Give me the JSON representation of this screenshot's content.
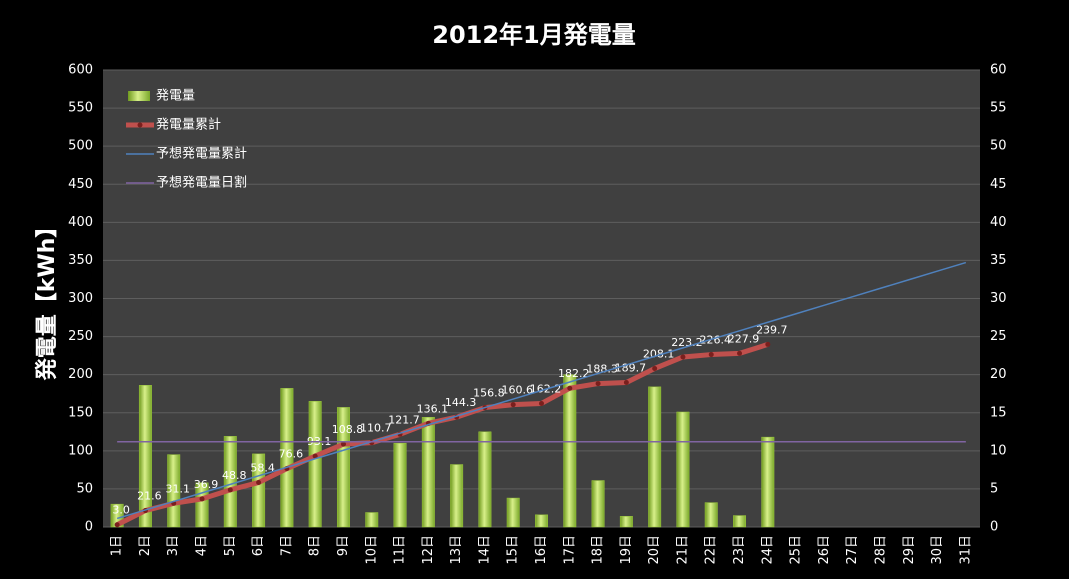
{
  "chart_data": {
    "type": "bar",
    "title": "2012年1月発電量",
    "y_label": "発電量【kWh】",
    "categories": [
      "1日",
      "2日",
      "3日",
      "4日",
      "5日",
      "6日",
      "7日",
      "8日",
      "9日",
      "10日",
      "11日",
      "12日",
      "13日",
      "14日",
      "15日",
      "16日",
      "17日",
      "18日",
      "19日",
      "20日",
      "21日",
      "22日",
      "23日",
      "24日",
      "25日",
      "26日",
      "27日",
      "28日",
      "29日",
      "30日",
      "31日"
    ],
    "ylim": [
      0,
      600
    ],
    "yticks": [
      0,
      50,
      100,
      150,
      200,
      250,
      300,
      350,
      400,
      450,
      500,
      550,
      600
    ],
    "y2lim": [
      0,
      60
    ],
    "y2ticks": [
      0,
      5,
      10,
      15,
      20,
      25,
      30,
      35,
      40,
      45,
      50,
      55,
      60
    ],
    "grid": true,
    "legend": "upper left",
    "series": [
      {
        "name": "発電量",
        "type": "bar",
        "axis": "y2",
        "color": "#9bc83c",
        "values": [
          3.0,
          18.6,
          9.5,
          5.8,
          11.9,
          9.6,
          18.2,
          16.5,
          15.7,
          1.9,
          11.0,
          14.4,
          8.2,
          12.5,
          3.8,
          1.6,
          20.0,
          6.1,
          1.4,
          18.4,
          15.1,
          3.2,
          1.5,
          11.8,
          null,
          null,
          null,
          null,
          null,
          null,
          null
        ]
      },
      {
        "name": "発電量累計",
        "type": "line",
        "color": "#c0504d",
        "markers": true,
        "values": [
          3.0,
          21.6,
          31.1,
          36.9,
          48.8,
          58.4,
          76.6,
          93.1,
          108.8,
          110.7,
          121.7,
          136.1,
          144.3,
          156.8,
          160.6,
          162.2,
          182.2,
          188.3,
          189.7,
          208.1,
          223.2,
          226.4,
          227.9,
          239.7,
          null,
          null,
          null,
          null,
          null,
          null,
          null
        ],
        "value_labels": [
          "3.0",
          "21.6",
          "31.1",
          "36.9",
          "48.8",
          "58.4",
          "76.6",
          "93.1",
          "108.8",
          "110.7",
          "121.7",
          "136.1",
          "144.3",
          "156.8",
          "160.6",
          "162.2",
          "182.2",
          "188.3",
          "189.7",
          "208.1",
          "223.2",
          "226.4",
          "227.9",
          "239.7",
          null,
          null,
          null,
          null,
          null,
          null,
          null
        ]
      },
      {
        "name": "予想発電量累計",
        "type": "line",
        "color": "#4f81bd",
        "values": [
          11.2,
          22.4,
          33.6,
          44.8,
          56,
          67.2,
          78.4,
          89.6,
          100.8,
          112,
          123.2,
          134.4,
          145.6,
          156.8,
          168,
          179.2,
          190.4,
          201.6,
          212.8,
          224,
          235.2,
          246.4,
          257.6,
          268.8,
          280,
          291.2,
          302.4,
          313.6,
          324.8,
          336,
          347.2
        ]
      },
      {
        "name": "予想発電量日割",
        "type": "line",
        "axis": "y2",
        "color": "#8064a2",
        "values": [
          11.2,
          11.2,
          11.2,
          11.2,
          11.2,
          11.2,
          11.2,
          11.2,
          11.2,
          11.2,
          11.2,
          11.2,
          11.2,
          11.2,
          11.2,
          11.2,
          11.2,
          11.2,
          11.2,
          11.2,
          11.2,
          11.2,
          11.2,
          11.2,
          11.2,
          11.2,
          11.2,
          11.2,
          11.2,
          11.2,
          11.2
        ]
      }
    ]
  }
}
